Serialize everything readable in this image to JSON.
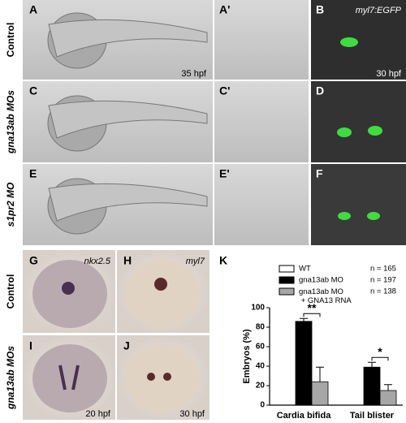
{
  "panel_letters": [
    "A",
    "A'",
    "B",
    "C",
    "C'",
    "D",
    "E",
    "E'",
    "F",
    "G",
    "H",
    "I",
    "J",
    "K"
  ],
  "row_labels": [
    "Control",
    "gna13ab MOs",
    "s1pr2 MO",
    "Control",
    "gna13ab MOs"
  ],
  "time_labels": [
    "35 hpf",
    "30 hpf",
    "20 hpf",
    "30 hpf"
  ],
  "gene_labels": [
    "myl7:EGFP",
    "nkx2.5",
    "myl7"
  ],
  "chart_data": {
    "type": "bar",
    "categories": [
      "Cardia bifida",
      "Tail blister"
    ],
    "y_label": "Embryos (%)",
    "ylim": [
      0,
      100
    ],
    "yticks": [
      0,
      20,
      40,
      60,
      80,
      100
    ],
    "series": [
      {
        "name": "WT",
        "color": "#ffffff",
        "values": [
          0,
          0
        ],
        "errors": [
          0,
          0
        ],
        "n_label": "n = 165"
      },
      {
        "name": "gna13ab MO",
        "color": "#000000",
        "values": [
          86,
          39
        ],
        "errors": [
          3,
          5
        ],
        "n_label": "n = 197"
      },
      {
        "name": "gna13ab MO + GNA13 RNA",
        "color": "#a6a6a6",
        "values": [
          24,
          15
        ],
        "errors": [
          15,
          6
        ],
        "n_label": "n = 138"
      }
    ],
    "annotations": [
      "**",
      "*"
    ]
  }
}
